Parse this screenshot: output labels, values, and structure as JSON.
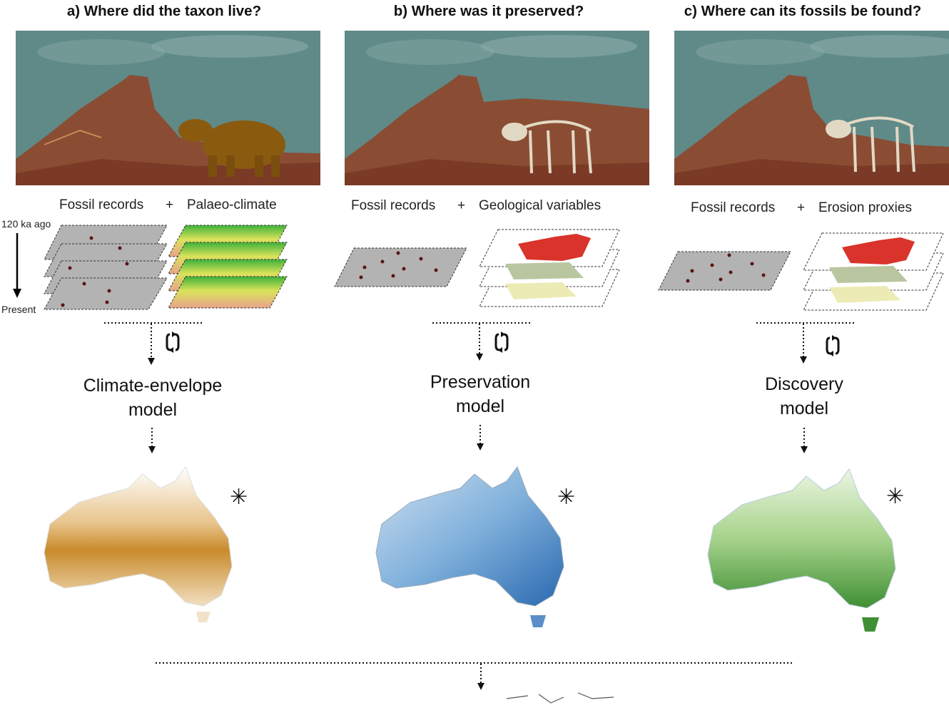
{
  "panels": [
    {
      "title": "a) Where did the taxon live?",
      "input_left": "Fossil records",
      "plus": "+",
      "input_right": "Palaeo-climate",
      "model_line1": "Climate-envelope",
      "model_line2": "model",
      "map_color": "#c98b2c"
    },
    {
      "title": "b) Where was it preserved?",
      "input_left": "Fossil records",
      "plus": "+",
      "input_right": "Geological variables",
      "model_line1": "Preservation",
      "model_line2": "model",
      "map_color": "#2a69b0"
    },
    {
      "title": "c) Where can its fossils be found?",
      "input_left": "Fossil records",
      "plus": "+",
      "input_right": "Erosion proxies",
      "model_line1": "Discovery",
      "model_line2": "model",
      "map_color": "#3f8f34"
    }
  ],
  "time_axis": {
    "top_label": "120 ka ago",
    "bottom_label": "Present"
  },
  "colors": {
    "sky": "#5f8a88",
    "rock": "#8a4d34",
    "ground": "#7b3a26",
    "fossil_layer": "#b3b3b3",
    "fossil_dot": "#5a1414",
    "geology_red": "#d9332b"
  },
  "icons": [
    "cycle-icon",
    "asterisk-icon"
  ]
}
